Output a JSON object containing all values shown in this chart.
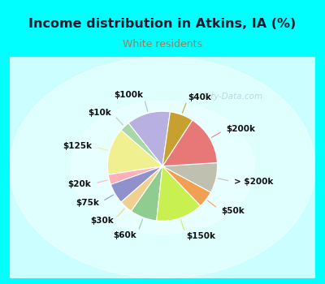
{
  "title": "Income distribution in Atkins, IA (%)",
  "subtitle": "White residents",
  "title_color": "#1a1a2e",
  "subtitle_color": "#aa7755",
  "background_outer": "#00ffff",
  "background_inner_color": "#d8f0e8",
  "watermark": "City-Data.com",
  "labels": [
    "$100k",
    "$10k",
    "$125k",
    "$20k",
    "$75k",
    "$30k",
    "$60k",
    "$150k",
    "$50k",
    "> $200k",
    "$200k",
    "$40k"
  ],
  "values": [
    13,
    3,
    14,
    3,
    6,
    4,
    8,
    14,
    5,
    9,
    15,
    7
  ],
  "colors": [
    "#b8b0e0",
    "#a8d8a8",
    "#f0f090",
    "#ffb0b8",
    "#9090cc",
    "#f0d090",
    "#90cc90",
    "#c8f050",
    "#f0a050",
    "#c0c0b0",
    "#e87878",
    "#c8a030"
  ],
  "label_fontsize": 7.5,
  "figsize": [
    4.0,
    3.5
  ],
  "dpi": 100,
  "startangle": 90
}
